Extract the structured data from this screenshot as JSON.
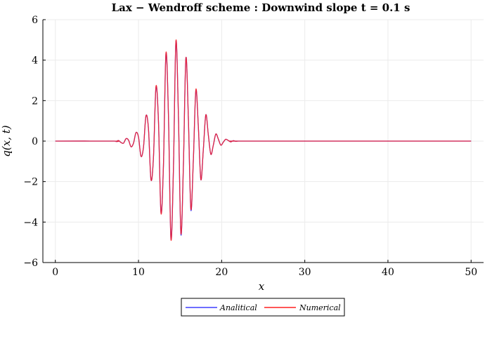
{
  "chart_data": {
    "type": "line",
    "title": "Lax − Wendroff scheme : Downwind slope t = 0.1 s",
    "xlabel": "x",
    "ylabel": "q(x, t)",
    "xlim": [
      -1.5,
      51.5
    ],
    "ylim": [
      -6,
      6
    ],
    "xticks": [
      0,
      10,
      20,
      30,
      40,
      50
    ],
    "yticks": [
      -6,
      -4,
      -2,
      0,
      2,
      4,
      6
    ],
    "xtick_labels": [
      "0",
      "10",
      "20",
      "30",
      "40",
      "50"
    ],
    "ytick_labels": [
      "−6",
      "−4",
      "−2",
      "0",
      "2",
      "4",
      "6"
    ],
    "grid": true,
    "legend_position": "bottom-center outside",
    "series": [
      {
        "name": "Analitical",
        "color": "#3f3fff",
        "x": [
          0,
          7.0,
          7.3,
          7.6,
          7.9,
          8.2,
          8.5,
          8.8,
          9.1,
          9.4,
          9.7,
          10.0,
          10.3,
          10.6,
          10.9,
          11.2,
          11.5,
          11.8,
          12.1,
          12.4,
          12.7,
          13.0,
          13.3,
          13.6,
          13.9,
          14.2,
          14.5,
          14.8,
          15.1,
          15.4,
          15.7,
          16.0,
          16.3,
          16.6,
          16.9,
          17.2,
          17.5,
          17.8,
          18.1,
          18.4,
          18.7,
          19.0,
          19.3,
          19.6,
          19.9,
          20.2,
          20.5,
          20.8,
          21.1,
          21.4,
          21.7,
          22.0,
          22.3,
          22.6,
          23.0,
          50
        ],
        "y": [
          0,
          0.0,
          -0.02,
          0.03,
          -0.07,
          -0.1,
          0.12,
          0.05,
          -0.28,
          -0.1,
          0.42,
          0.2,
          -0.75,
          -0.3,
          1.25,
          0.6,
          -1.9,
          -0.8,
          2.65,
          1.0,
          -3.5,
          -1.2,
          4.3,
          1.3,
          -4.8,
          -1.4,
          4.9,
          1.3,
          -4.6,
          -1.2,
          4.1,
          1.1,
          -3.4,
          -0.9,
          2.5,
          0.7,
          -1.9,
          -0.4,
          1.3,
          0.3,
          -0.65,
          -0.2,
          0.35,
          0.1,
          -0.2,
          -0.05,
          0.09,
          0.03,
          -0.04,
          0.02,
          -0.01,
          0.0,
          0.0,
          0.0,
          0.0,
          0
        ]
      },
      {
        "name": "Numerical",
        "color": "#ff2020",
        "x": [
          0,
          7.0,
          7.3,
          7.6,
          7.9,
          8.2,
          8.5,
          8.8,
          9.1,
          9.4,
          9.7,
          10.0,
          10.3,
          10.6,
          10.9,
          11.2,
          11.5,
          11.8,
          12.1,
          12.4,
          12.7,
          13.0,
          13.3,
          13.6,
          13.9,
          14.2,
          14.5,
          14.8,
          15.1,
          15.4,
          15.7,
          16.0,
          16.3,
          16.6,
          16.9,
          17.2,
          17.5,
          17.8,
          18.1,
          18.4,
          18.7,
          19.0,
          19.3,
          19.6,
          19.9,
          20.2,
          20.5,
          20.8,
          21.1,
          21.4,
          21.7,
          22.0,
          22.3,
          22.6,
          23.0,
          50
        ],
        "y": [
          0,
          0.0,
          -0.02,
          0.03,
          -0.07,
          -0.1,
          0.12,
          0.05,
          -0.28,
          -0.1,
          0.42,
          0.2,
          -0.75,
          -0.3,
          1.25,
          0.6,
          -1.9,
          -0.8,
          2.7,
          1.0,
          -3.55,
          -1.2,
          4.35,
          1.3,
          -4.85,
          -1.4,
          4.95,
          1.3,
          -4.55,
          -1.2,
          4.1,
          1.1,
          -3.35,
          -0.9,
          2.55,
          0.7,
          -1.9,
          -0.4,
          1.3,
          0.3,
          -0.65,
          -0.2,
          0.35,
          0.1,
          -0.2,
          -0.05,
          0.09,
          0.03,
          -0.04,
          0.02,
          -0.01,
          0.0,
          0.0,
          0.0,
          0.0,
          0
        ]
      }
    ]
  }
}
